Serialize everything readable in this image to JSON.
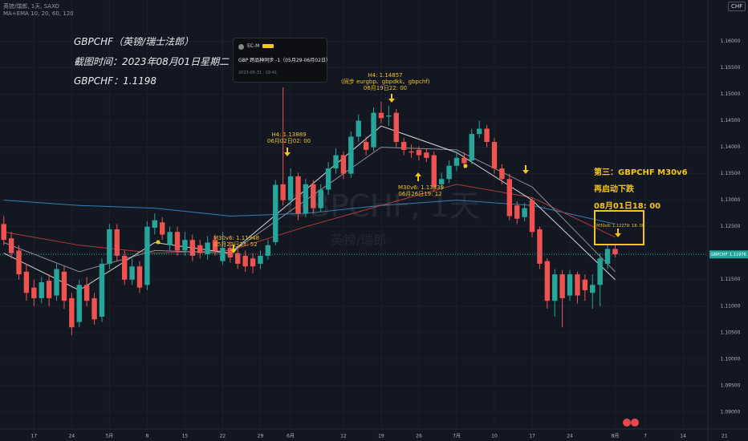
{
  "chart_data": {
    "type": "candlestick",
    "title": "英镑/瑞郎, 1天, SAXO",
    "subtitle": "MA+EMA 10, 20, 60, 120",
    "watermark": [
      "GBPCHF, 1天",
      "英镑/瑞郎"
    ],
    "currency": "CHF",
    "symbol": "GBPCHF",
    "last_price": 1.11976,
    "headline": [
      "GBPCHF（英镑/瑞士法郎）",
      "截图时间：2023年08月01日星期二",
      "GBPCHF：1.1198"
    ],
    "popup": {
      "author": "EC-M",
      "text": "GBP 跨品种同步 -1（05月29-06月02日）",
      "time": "2023-05-31 · 19:41"
    },
    "annotations": [
      [
        "H4: 1.14857",
        "(同步 eurgbp、gbpdkk、gbpchf)",
        "06月19日22: 00"
      ],
      [
        "H4: 1.13889",
        "06月02日02: 00"
      ],
      [
        "M30v6: 1.11948",
        "05月23日23: 52"
      ],
      [
        "M30v6: 1.13439",
        "06月26日19: 12"
      ],
      [
        "第三：GBPCHF M30v6",
        "再启动下跌",
        "08月01日18: 00"
      ],
      [
        "M30v6: 1.12279: 18: 00"
      ]
    ],
    "colors": {
      "up": "#26a69a",
      "down": "#ef5350"
    },
    "x": [
      0,
      1,
      2,
      3,
      4,
      5,
      6,
      7,
      8,
      9,
      10,
      11,
      12,
      13,
      14,
      15,
      16,
      17,
      18,
      19,
      20,
      21,
      22,
      23,
      24,
      25,
      26,
      27,
      28,
      29,
      30,
      31,
      32,
      33,
      34,
      35,
      36,
      37,
      38,
      39,
      40,
      41,
      42,
      43,
      44,
      45,
      46,
      47,
      48,
      49,
      50,
      51,
      52,
      53,
      54,
      55,
      56,
      57,
      58,
      59,
      60,
      61,
      62,
      63,
      64,
      65,
      66,
      67,
      68,
      69,
      70,
      71,
      72,
      73,
      74,
      75,
      76,
      77,
      78,
      79,
      80,
      81
    ],
    "open": [
      1.1255,
      1.1228,
      1.1205,
      1.1165,
      1.1135,
      1.1115,
      1.1148,
      1.112,
      1.1165,
      1.1115,
      1.107,
      1.114,
      1.1115,
      1.108,
      1.118,
      1.1245,
      1.1195,
      1.115,
      1.1175,
      1.114,
      1.1248,
      1.1258,
      1.1215,
      1.124,
      1.1205,
      1.1225,
      1.1215,
      1.1198,
      1.1225,
      1.1185,
      1.121,
      1.12,
      1.1195,
      1.119,
      1.118,
      1.1195,
      1.1221,
      1.133,
      1.13,
      1.1345,
      1.1275,
      1.133,
      1.1285,
      1.132,
      1.136,
      1.1385,
      1.135,
      1.142,
      1.141,
      1.14,
      1.1465,
      1.1458,
      1.1465,
      1.141,
      1.1392,
      1.1395,
      1.139,
      1.1385,
      1.133,
      1.134,
      1.1365,
      1.138,
      1.1375,
      1.1425,
      1.1435,
      1.141,
      1.136,
      1.134,
      1.129,
      1.1268,
      1.13,
      1.1245,
      1.1185,
      1.111,
      1.116,
      1.112,
      1.116,
      1.115,
      1.1125,
      1.114,
      1.118,
      1.1208
    ],
    "high": [
      1.127,
      1.124,
      1.1215,
      1.118,
      1.115,
      1.1155,
      1.116,
      1.118,
      1.1175,
      1.1125,
      1.115,
      1.1155,
      1.1125,
      1.119,
      1.1255,
      1.1255,
      1.1205,
      1.119,
      1.1185,
      1.126,
      1.1275,
      1.1268,
      1.125,
      1.125,
      1.124,
      1.1235,
      1.1225,
      1.1232,
      1.1235,
      1.124,
      1.1222,
      1.121,
      1.1205,
      1.12,
      1.1205,
      1.1225,
      1.1338,
      1.1513,
      1.136,
      1.1352,
      1.134,
      1.1338,
      1.133,
      1.1372,
      1.1398,
      1.1392,
      1.143,
      1.1462,
      1.142,
      1.1475,
      1.1486,
      1.1478,
      1.1472,
      1.1418,
      1.1405,
      1.1402,
      1.1398,
      1.1392,
      1.1352,
      1.1375,
      1.1392,
      1.139,
      1.1435,
      1.145,
      1.1442,
      1.1418,
      1.1368,
      1.135,
      1.1298,
      1.1295,
      1.1305,
      1.125,
      1.119,
      1.117,
      1.1168,
      1.1168,
      1.1165,
      1.116,
      1.116,
      1.12,
      1.1218,
      1.1215
    ],
    "low": [
      1.1215,
      1.119,
      1.115,
      1.111,
      1.11,
      1.1105,
      1.11,
      1.111,
      1.1095,
      1.1045,
      1.106,
      1.11,
      1.1065,
      1.107,
      1.117,
      1.1185,
      1.114,
      1.114,
      1.1125,
      1.113,
      1.1235,
      1.1225,
      1.1205,
      1.1195,
      1.1195,
      1.1185,
      1.119,
      1.1188,
      1.1195,
      1.1178,
      1.1182,
      1.117,
      1.1165,
      1.1162,
      1.117,
      1.1188,
      1.1215,
      1.129,
      1.129,
      1.1262,
      1.1268,
      1.1275,
      1.1278,
      1.131,
      1.135,
      1.134,
      1.1342,
      1.141,
      1.1385,
      1.1392,
      1.1445,
      1.144,
      1.14,
      1.1385,
      1.138,
      1.1375,
      1.1372,
      1.1315,
      1.132,
      1.1332,
      1.1355,
      1.136,
      1.1368,
      1.1418,
      1.14,
      1.135,
      1.133,
      1.1262,
      1.1255,
      1.126,
      1.123,
      1.117,
      1.1095,
      1.108,
      1.106,
      1.111,
      1.1105,
      1.111,
      1.1095,
      1.11,
      1.117,
      1.1192
    ],
    "close": [
      1.1225,
      1.12,
      1.116,
      1.1125,
      1.1115,
      1.1145,
      1.1115,
      1.117,
      1.111,
      1.106,
      1.114,
      1.111,
      1.1075,
      1.118,
      1.1245,
      1.1195,
      1.115,
      1.1175,
      1.1135,
      1.125,
      1.1262,
      1.1235,
      1.124,
      1.1205,
      1.1225,
      1.1195,
      1.12,
      1.122,
      1.1205,
      1.121,
      1.1192,
      1.118,
      1.1175,
      1.1175,
      1.1195,
      1.1215,
      1.1329,
      1.13,
      1.1345,
      1.1275,
      1.133,
      1.1285,
      1.132,
      1.136,
      1.1385,
      1.135,
      1.142,
      1.145,
      1.1395,
      1.1465,
      1.1455,
      1.146,
      1.141,
      1.1395,
      1.139,
      1.1385,
      1.138,
      1.1325,
      1.134,
      1.1365,
      1.138,
      1.137,
      1.1425,
      1.1435,
      1.141,
      1.136,
      1.134,
      1.127,
      1.1265,
      1.1285,
      1.124,
      1.118,
      1.111,
      1.116,
      1.1115,
      1.116,
      1.112,
      1.113,
      1.114,
      1.119,
      1.1208,
      1.1198
    ],
    "lines": [
      {
        "color": "#2f7fb8",
        "x": [
          0,
          10,
          20,
          30,
          40,
          50,
          60,
          70,
          81
        ],
        "values": [
          1.13,
          1.129,
          1.1285,
          1.127,
          1.1275,
          1.129,
          1.13,
          1.129,
          1.1255
        ]
      },
      {
        "color": "#b23a3a",
        "x": [
          0,
          10,
          20,
          30,
          40,
          50,
          60,
          70,
          81
        ],
        "values": [
          1.124,
          1.1215,
          1.12,
          1.1205,
          1.125,
          1.129,
          1.133,
          1.1305,
          1.123
        ]
      },
      {
        "color": "#8a8f99",
        "x": [
          0,
          10,
          20,
          30,
          40,
          50,
          60,
          70,
          81
        ],
        "values": [
          1.122,
          1.1165,
          1.1205,
          1.12,
          1.13,
          1.14,
          1.1395,
          1.1325,
          1.1165
        ]
      },
      {
        "color": "#d9d9d9",
        "x": [
          0,
          10,
          20,
          30,
          40,
          50,
          60,
          70,
          81
        ],
        "values": [
          1.12,
          1.113,
          1.122,
          1.12,
          1.132,
          1.144,
          1.139,
          1.13,
          1.115
        ]
      }
    ],
    "xlim": [
      -0.5,
      98.6
    ],
    "xticks": [
      {
        "value": 4,
        "label": "17"
      },
      {
        "value": 9,
        "label": "24"
      },
      {
        "value": 14,
        "label": "5月"
      },
      {
        "value": 19,
        "label": "8"
      },
      {
        "value": 24,
        "label": "15"
      },
      {
        "value": 29,
        "label": "22"
      },
      {
        "value": 34,
        "label": "29"
      },
      {
        "value": 38,
        "label": "6月"
      },
      {
        "value": 45,
        "label": "12"
      },
      {
        "value": 50,
        "label": "19"
      },
      {
        "value": 55,
        "label": "26"
      },
      {
        "value": 60,
        "label": "7月"
      },
      {
        "value": 65,
        "label": "10"
      },
      {
        "value": 70,
        "label": "17"
      },
      {
        "value": 75,
        "label": "24"
      },
      {
        "value": 81,
        "label": "8月"
      },
      {
        "value": 85,
        "label": "7"
      },
      {
        "value": 90,
        "label": "14"
      },
      {
        "value": 95.5,
        "label": "21"
      }
    ],
    "ylim": [
      1.0868,
      1.1678
    ],
    "yticks": [
      {
        "value": 1.09,
        "label": "1.09000"
      },
      {
        "value": 1.095,
        "label": "1.09500"
      },
      {
        "value": 1.1,
        "label": "1.10000"
      },
      {
        "value": 1.105,
        "label": "1.10500"
      },
      {
        "value": 1.11,
        "label": "1.11000"
      },
      {
        "value": 1.115,
        "label": "1.11500"
      },
      {
        "value": 1.12,
        "label": "1.12000"
      },
      {
        "value": 1.125,
        "label": "1.12500"
      },
      {
        "value": 1.13,
        "label": "1.13000"
      },
      {
        "value": 1.135,
        "label": "1.13500"
      },
      {
        "value": 1.14,
        "label": "1.14000"
      },
      {
        "value": 1.145,
        "label": "1.14500"
      },
      {
        "value": 1.15,
        "label": "1.15000"
      },
      {
        "value": 1.155,
        "label": "1.15500"
      },
      {
        "value": 1.16,
        "label": "1.16000"
      }
    ],
    "grid": true
  }
}
